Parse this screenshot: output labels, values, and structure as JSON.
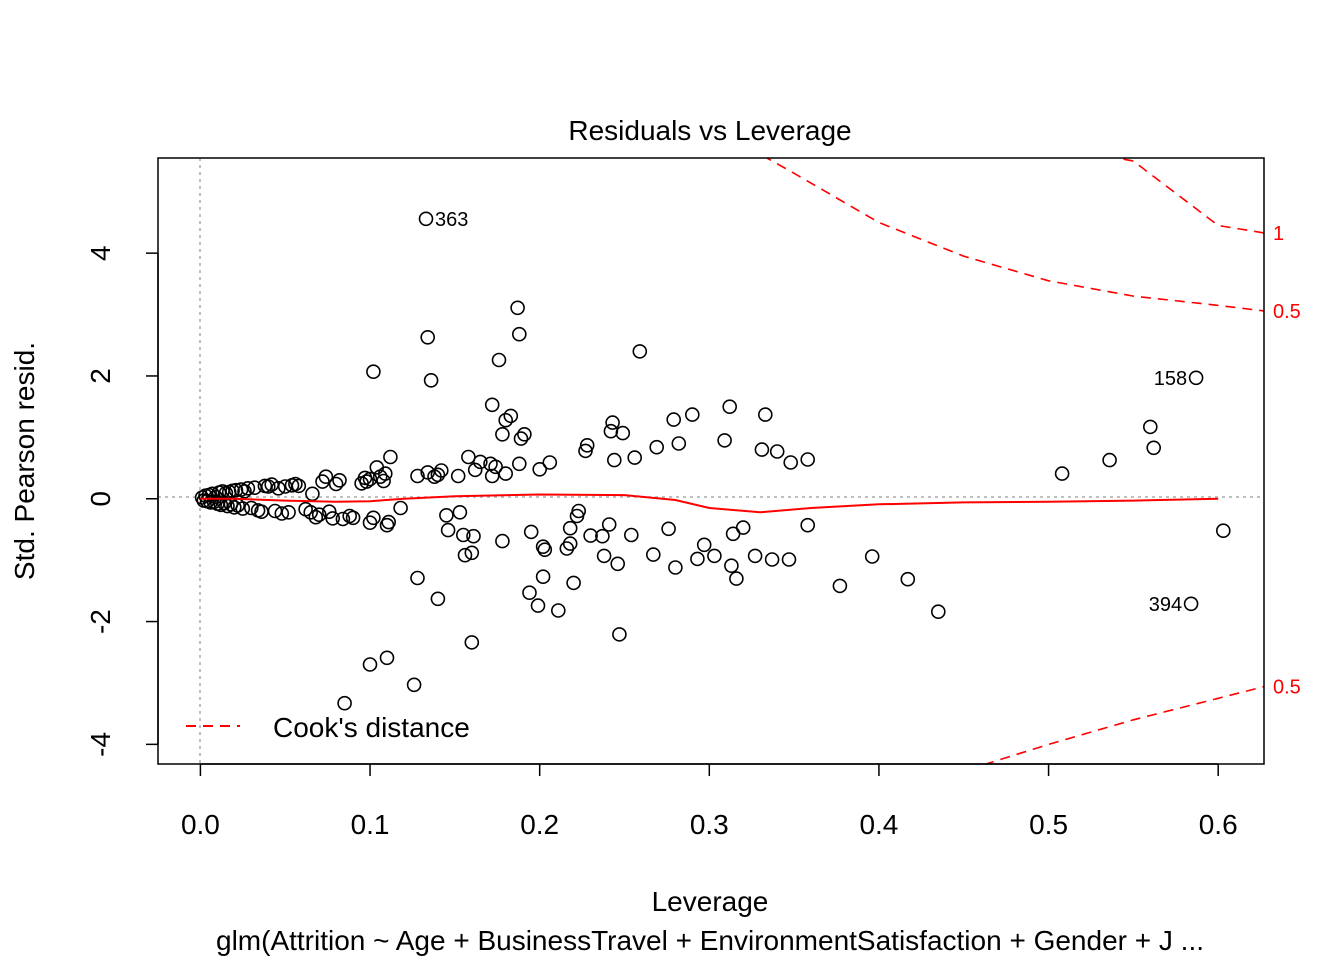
{
  "chart_data": {
    "type": "scatter",
    "title": "Residuals vs Leverage",
    "xlabel": "Leverage",
    "subtitle": "glm(Attrition ~ Age + BusinessTravel + EnvironmentSatisfaction + Gender + J ...",
    "ylabel": "Std. Pearson resid.",
    "xlim": [
      -0.025,
      0.627
    ],
    "ylim": [
      -4.32,
      5.55
    ],
    "x_ticks": [
      "0.0",
      "0.1",
      "0.2",
      "0.3",
      "0.4",
      "0.5",
      "0.6"
    ],
    "y_ticks": [
      "-4",
      "-2",
      "0",
      "2",
      "4"
    ],
    "legend": {
      "label": "Cook's distance",
      "placement": "bottom-left",
      "color": "#ff0000"
    },
    "cooks_labels": [
      "1",
      "0.5",
      "0.5"
    ],
    "colors": {
      "points": "#000000",
      "smooth": "#ff0000",
      "cooks": "#ff0000",
      "reference": "#aaaaaa"
    },
    "annotations": [
      {
        "label": "363",
        "x": 0.133,
        "y": 4.56,
        "side": "right"
      },
      {
        "label": "158",
        "x": 0.587,
        "y": 1.97,
        "side": "left"
      },
      {
        "label": "394",
        "x": 0.584,
        "y": -1.71,
        "side": "left"
      }
    ],
    "points": [
      [
        0.001,
        0.02
      ],
      [
        0.002,
        -0.03
      ],
      [
        0.003,
        0.05
      ],
      [
        0.004,
        -0.04
      ],
      [
        0.005,
        0.06
      ],
      [
        0.006,
        -0.06
      ],
      [
        0.007,
        0.08
      ],
      [
        0.008,
        -0.05
      ],
      [
        0.009,
        0.03
      ],
      [
        0.01,
        -0.08
      ],
      [
        0.011,
        0.1
      ],
      [
        0.012,
        -0.1
      ],
      [
        0.013,
        0.12
      ],
      [
        0.014,
        -0.07
      ],
      [
        0.015,
        0.09
      ],
      [
        0.016,
        -0.12
      ],
      [
        0.017,
        0.11
      ],
      [
        0.018,
        -0.09
      ],
      [
        0.019,
        0.13
      ],
      [
        0.02,
        -0.14
      ],
      [
        0.021,
        0.14
      ],
      [
        0.022,
        -0.11
      ],
      [
        0.024,
        0.15
      ],
      [
        0.025,
        -0.16
      ],
      [
        0.026,
        0.12
      ],
      [
        0.028,
        0.17
      ],
      [
        0.03,
        -0.15
      ],
      [
        0.032,
        0.18
      ],
      [
        0.034,
        -0.19
      ],
      [
        0.036,
        -0.21
      ],
      [
        0.038,
        0.21
      ],
      [
        0.04,
        0.2
      ],
      [
        0.042,
        0.23
      ],
      [
        0.044,
        -0.2
      ],
      [
        0.046,
        0.17
      ],
      [
        0.048,
        -0.24
      ],
      [
        0.05,
        0.2
      ],
      [
        0.052,
        -0.22
      ],
      [
        0.054,
        0.22
      ],
      [
        0.056,
        0.24
      ],
      [
        0.058,
        0.21
      ],
      [
        0.062,
        -0.17
      ],
      [
        0.065,
        -0.22
      ],
      [
        0.066,
        0.08
      ],
      [
        0.068,
        -0.3
      ],
      [
        0.07,
        -0.26
      ],
      [
        0.072,
        0.28
      ],
      [
        0.074,
        0.36
      ],
      [
        0.076,
        -0.21
      ],
      [
        0.078,
        -0.32
      ],
      [
        0.08,
        0.24
      ],
      [
        0.082,
        0.3
      ],
      [
        0.084,
        -0.33
      ],
      [
        0.088,
        -0.28
      ],
      [
        0.09,
        -0.31
      ],
      [
        0.095,
        0.25
      ],
      [
        0.097,
        0.34
      ],
      [
        0.098,
        0.28
      ],
      [
        0.1,
        0.32
      ],
      [
        0.1,
        -0.39
      ],
      [
        0.102,
        -0.31
      ],
      [
        0.104,
        0.51
      ],
      [
        0.106,
        0.36
      ],
      [
        0.108,
        0.29
      ],
      [
        0.109,
        0.41
      ],
      [
        0.11,
        -0.43
      ],
      [
        0.111,
        -0.38
      ],
      [
        0.112,
        0.68
      ],
      [
        0.118,
        -0.15
      ],
      [
        0.128,
        0.37
      ],
      [
        0.134,
        0.43
      ],
      [
        0.138,
        0.36
      ],
      [
        0.14,
        0.39
      ],
      [
        0.142,
        0.46
      ],
      [
        0.145,
        -0.27
      ],
      [
        0.146,
        -0.51
      ],
      [
        0.152,
        0.37
      ],
      [
        0.153,
        -0.22
      ],
      [
        0.155,
        -0.59
      ],
      [
        0.156,
        -0.92
      ],
      [
        0.158,
        0.68
      ],
      [
        0.16,
        -0.88
      ],
      [
        0.161,
        -0.61
      ],
      [
        0.162,
        0.47
      ],
      [
        0.165,
        0.6
      ],
      [
        0.171,
        0.57
      ],
      [
        0.172,
        0.37
      ],
      [
        0.174,
        0.52
      ],
      [
        0.178,
        1.05
      ],
      [
        0.178,
        -0.69
      ],
      [
        0.18,
        0.41
      ],
      [
        0.18,
        1.28
      ],
      [
        0.183,
        1.35
      ],
      [
        0.188,
        0.57
      ],
      [
        0.189,
        0.98
      ],
      [
        0.191,
        1.05
      ],
      [
        0.195,
        -0.54
      ],
      [
        0.2,
        0.48
      ],
      [
        0.202,
        -0.78
      ],
      [
        0.203,
        -0.83
      ],
      [
        0.206,
        0.59
      ],
      [
        0.211,
        -1.82
      ],
      [
        0.216,
        -0.81
      ],
      [
        0.218,
        -0.73
      ],
      [
        0.218,
        -0.48
      ],
      [
        0.22,
        -1.37
      ],
      [
        0.222,
        -0.28
      ],
      [
        0.223,
        -0.2
      ],
      [
        0.227,
        0.78
      ],
      [
        0.228,
        0.87
      ],
      [
        0.23,
        -0.6
      ],
      [
        0.237,
        -0.61
      ],
      [
        0.238,
        -0.93
      ],
      [
        0.241,
        -0.42
      ],
      [
        0.242,
        1.1
      ],
      [
        0.243,
        1.24
      ],
      [
        0.244,
        0.63
      ],
      [
        0.246,
        -1.06
      ],
      [
        0.249,
        1.07
      ],
      [
        0.254,
        -0.59
      ],
      [
        0.256,
        0.67
      ],
      [
        0.259,
        2.4
      ],
      [
        0.267,
        -0.91
      ],
      [
        0.269,
        0.84
      ],
      [
        0.276,
        -0.49
      ],
      [
        0.279,
        1.29
      ],
      [
        0.28,
        -1.12
      ],
      [
        0.282,
        0.9
      ],
      [
        0.29,
        1.37
      ],
      [
        0.293,
        -0.98
      ],
      [
        0.297,
        -0.75
      ],
      [
        0.303,
        -0.93
      ],
      [
        0.309,
        0.95
      ],
      [
        0.312,
        1.5
      ],
      [
        0.313,
        -1.09
      ],
      [
        0.314,
        -0.57
      ],
      [
        0.316,
        -1.3
      ],
      [
        0.32,
        -0.47
      ],
      [
        0.327,
        -0.93
      ],
      [
        0.331,
        0.8
      ],
      [
        0.333,
        1.37
      ],
      [
        0.337,
        -0.99
      ],
      [
        0.34,
        0.77
      ],
      [
        0.347,
        -0.99
      ],
      [
        0.348,
        0.59
      ],
      [
        0.358,
        0.64
      ],
      [
        0.358,
        -0.43
      ],
      [
        0.377,
        -1.42
      ],
      [
        0.396,
        -0.94
      ],
      [
        0.417,
        -1.31
      ],
      [
        0.435,
        -1.84
      ],
      [
        0.508,
        0.41
      ],
      [
        0.536,
        0.63
      ],
      [
        0.56,
        1.17
      ],
      [
        0.562,
        0.83
      ],
      [
        0.603,
        -0.52
      ],
      [
        0.102,
        2.07
      ],
      [
        0.134,
        2.63
      ],
      [
        0.136,
        1.93
      ],
      [
        0.172,
        1.53
      ],
      [
        0.176,
        2.26
      ],
      [
        0.187,
        3.11
      ],
      [
        0.188,
        2.68
      ],
      [
        0.14,
        -1.63
      ],
      [
        0.128,
        -1.29
      ],
      [
        0.16,
        -2.34
      ],
      [
        0.1,
        -2.7
      ],
      [
        0.11,
        -2.59
      ],
      [
        0.126,
        -3.03
      ],
      [
        0.085,
        -3.33
      ],
      [
        0.247,
        -2.21
      ],
      [
        0.194,
        -1.53
      ],
      [
        0.199,
        -1.74
      ],
      [
        0.202,
        -1.27
      ],
      [
        0.133,
        4.56
      ],
      [
        0.587,
        1.97
      ],
      [
        0.584,
        -1.71
      ]
    ],
    "smooth": [
      [
        0.0,
        0.0
      ],
      [
        0.02,
        0.0
      ],
      [
        0.05,
        -0.03
      ],
      [
        0.08,
        -0.05
      ],
      [
        0.1,
        -0.04
      ],
      [
        0.12,
        0.0
      ],
      [
        0.15,
        0.04
      ],
      [
        0.2,
        0.07
      ],
      [
        0.25,
        0.06
      ],
      [
        0.28,
        -0.02
      ],
      [
        0.3,
        -0.15
      ],
      [
        0.33,
        -0.22
      ],
      [
        0.36,
        -0.15
      ],
      [
        0.4,
        -0.09
      ],
      [
        0.45,
        -0.06
      ],
      [
        0.5,
        -0.05
      ],
      [
        0.55,
        -0.03
      ],
      [
        0.6,
        0.0
      ]
    ],
    "cooks_curves": [
      {
        "label": "1",
        "points": [
          [
            0.398,
            6.49
          ],
          [
            0.45,
            6.12
          ],
          [
            0.5,
            5.77
          ],
          [
            0.55,
            5.5
          ],
          [
            0.6,
            4.45
          ],
          [
            0.627,
            4.33
          ]
        ]
      },
      {
        "label": "0.5",
        "points": [
          [
            0.305,
            6.0
          ],
          [
            0.35,
            5.3
          ],
          [
            0.4,
            4.5
          ],
          [
            0.45,
            3.95
          ],
          [
            0.5,
            3.55
          ],
          [
            0.55,
            3.3
          ],
          [
            0.6,
            3.15
          ],
          [
            0.627,
            3.06
          ]
        ]
      },
      {
        "label": "0.5",
        "points": [
          [
            0.462,
            -4.33
          ],
          [
            0.5,
            -4.0
          ],
          [
            0.55,
            -3.6
          ],
          [
            0.6,
            -3.25
          ],
          [
            0.627,
            -3.06
          ]
        ]
      }
    ]
  }
}
